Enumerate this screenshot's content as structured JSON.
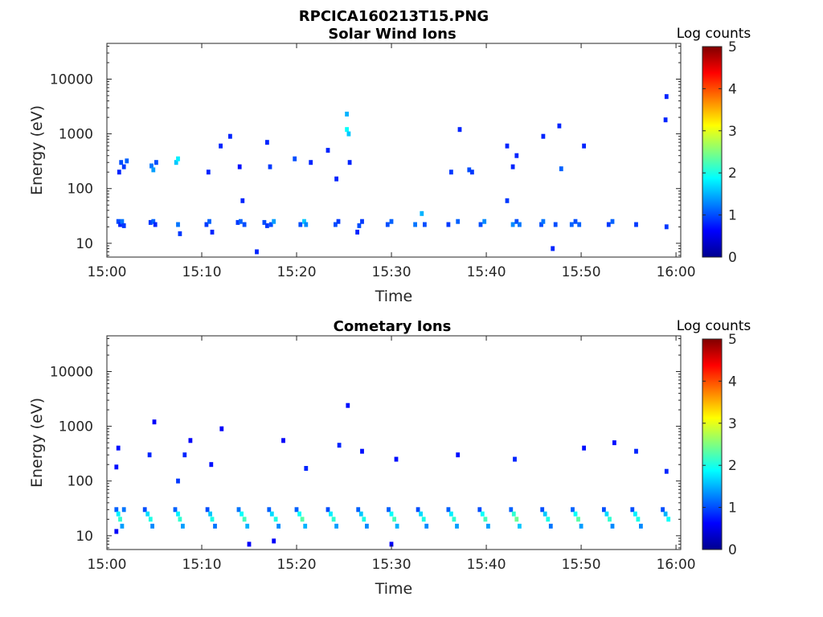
{
  "figure": {
    "title": "RPCICA160213T15.PNG"
  },
  "chart_data": [
    {
      "type": "heatmap",
      "title": "Solar Wind Ions",
      "xlabel": "Time",
      "ylabel": "Energy (eV)",
      "x_ticks": [
        "15:00",
        "15:10",
        "15:20",
        "15:30",
        "15:40",
        "15:50",
        "16:00"
      ],
      "x_tick_minutes": [
        0,
        10,
        20,
        30,
        40,
        50,
        60
      ],
      "xlim_minutes": [
        0,
        60.5
      ],
      "y_scale": "log",
      "y_ticks": [
        10,
        100,
        1000,
        10000
      ],
      "ylim": [
        5.6,
        45000
      ],
      "colorbar": {
        "label": "Log counts",
        "ticks": [
          0,
          1,
          2,
          3,
          4,
          5
        ],
        "range": [
          0,
          5
        ],
        "colormap": "jet"
      },
      "cells": [
        [
          1.2,
          25,
          1.0
        ],
        [
          1.4,
          22,
          0.8
        ],
        [
          1.6,
          25,
          1.2
        ],
        [
          1.8,
          21,
          0.9
        ],
        [
          1.5,
          300,
          1.0
        ],
        [
          1.8,
          250,
          0.9
        ],
        [
          2.1,
          320,
          1.1
        ],
        [
          1.3,
          200,
          0.8
        ],
        [
          4.6,
          24,
          0.9
        ],
        [
          4.9,
          25,
          1.1
        ],
        [
          5.1,
          22,
          0.8
        ],
        [
          4.7,
          260,
          1.2
        ],
        [
          4.9,
          220,
          1.4
        ],
        [
          5.2,
          300,
          1.0
        ],
        [
          7.5,
          22,
          1.2
        ],
        [
          7.7,
          15,
          0.9
        ],
        [
          7.3,
          300,
          1.6
        ],
        [
          7.5,
          350,
          1.8
        ],
        [
          10.5,
          22,
          0.9
        ],
        [
          10.8,
          25,
          1.1
        ],
        [
          11.1,
          16,
          0.8
        ],
        [
          10.7,
          200,
          0.8
        ],
        [
          12.0,
          600,
          0.8
        ],
        [
          13.0,
          900,
          0.8
        ],
        [
          13.8,
          24,
          0.9
        ],
        [
          14.1,
          25,
          1.1
        ],
        [
          14.5,
          22,
          1.0
        ],
        [
          14.3,
          60,
          0.8
        ],
        [
          14.0,
          250,
          0.7
        ],
        [
          15.8,
          7,
          0.8
        ],
        [
          16.6,
          24,
          1.0
        ],
        [
          16.9,
          21,
          0.9
        ],
        [
          17.3,
          22,
          1.0
        ],
        [
          17.6,
          25,
          1.4
        ],
        [
          16.9,
          700,
          0.8
        ],
        [
          17.2,
          250,
          0.9
        ],
        [
          19.8,
          350,
          1.0
        ],
        [
          20.4,
          22,
          1.0
        ],
        [
          20.8,
          25,
          1.6
        ],
        [
          21.0,
          22,
          1.3
        ],
        [
          21.5,
          300,
          0.8
        ],
        [
          23.3,
          500,
          0.8
        ],
        [
          24.1,
          22,
          1.0
        ],
        [
          24.4,
          25,
          0.9
        ],
        [
          24.2,
          150,
          0.8
        ],
        [
          25.3,
          2300,
          1.5
        ],
        [
          25.3,
          1200,
          1.9
        ],
        [
          25.5,
          1000,
          1.6
        ],
        [
          25.6,
          300,
          0.8
        ],
        [
          26.6,
          21,
          1.0
        ],
        [
          26.9,
          25,
          0.9
        ],
        [
          26.4,
          16,
          0.8
        ],
        [
          29.6,
          22,
          1.0
        ],
        [
          30.0,
          25,
          1.1
        ],
        [
          32.5,
          22,
          1.2
        ],
        [
          33.2,
          35,
          1.5
        ],
        [
          33.5,
          22,
          1.0
        ],
        [
          36.0,
          22,
          0.9
        ],
        [
          36.3,
          200,
          0.9
        ],
        [
          37.0,
          25,
          1.1
        ],
        [
          37.2,
          1200,
          0.8
        ],
        [
          38.2,
          220,
          1.0
        ],
        [
          38.5,
          200,
          0.9
        ],
        [
          39.4,
          22,
          1.0
        ],
        [
          39.8,
          25,
          1.3
        ],
        [
          42.2,
          600,
          0.8
        ],
        [
          42.2,
          60,
          0.9
        ],
        [
          42.8,
          250,
          0.8
        ],
        [
          43.2,
          400,
          0.8
        ],
        [
          42.8,
          22,
          1.3
        ],
        [
          43.2,
          25,
          1.0
        ],
        [
          43.5,
          22,
          1.2
        ],
        [
          45.8,
          22,
          1.0
        ],
        [
          46.0,
          25,
          1.2
        ],
        [
          47.0,
          8,
          0.8
        ],
        [
          47.3,
          22,
          1.0
        ],
        [
          46.0,
          900,
          0.8
        ],
        [
          47.7,
          1400,
          0.8
        ],
        [
          47.9,
          230,
          1.1
        ],
        [
          49.0,
          22,
          1.1
        ],
        [
          49.4,
          25,
          1.0
        ],
        [
          49.8,
          22,
          1.1
        ],
        [
          50.3,
          600,
          0.8
        ],
        [
          52.9,
          22,
          0.9
        ],
        [
          53.3,
          25,
          1.1
        ],
        [
          55.8,
          22,
          0.9
        ],
        [
          58.9,
          1800,
          0.8
        ],
        [
          59.0,
          4800,
          0.8
        ],
        [
          59.0,
          20,
          0.9
        ]
      ]
    },
    {
      "type": "heatmap",
      "title": "Cometary Ions",
      "xlabel": "Time",
      "ylabel": "Energy (eV)",
      "x_ticks": [
        "15:00",
        "15:10",
        "15:20",
        "15:30",
        "15:40",
        "15:50",
        "16:00"
      ],
      "x_tick_minutes": [
        0,
        10,
        20,
        30,
        40,
        50,
        60
      ],
      "xlim_minutes": [
        0,
        60.5
      ],
      "y_scale": "log",
      "y_ticks": [
        10,
        100,
        1000,
        10000
      ],
      "ylim": [
        5.6,
        45000
      ],
      "colorbar": {
        "label": "Log counts",
        "ticks": [
          0,
          1,
          2,
          3,
          4,
          5
        ],
        "range": [
          0,
          5
        ],
        "colormap": "jet"
      },
      "cells": [
        [
          1.0,
          30,
          1.1
        ],
        [
          1.2,
          25,
          1.8
        ],
        [
          1.4,
          20,
          2.1
        ],
        [
          1.6,
          15,
          1.4
        ],
        [
          1.8,
          30,
          1.2
        ],
        [
          1.0,
          12,
          0.6
        ],
        [
          1.2,
          400,
          0.7
        ],
        [
          1.0,
          180,
          0.7
        ],
        [
          4.0,
          30,
          1.0
        ],
        [
          4.3,
          25,
          1.7
        ],
        [
          4.6,
          20,
          2.0
        ],
        [
          4.8,
          15,
          1.3
        ],
        [
          4.5,
          300,
          0.8
        ],
        [
          5.0,
          1200,
          0.6
        ],
        [
          7.2,
          30,
          1.1
        ],
        [
          7.5,
          25,
          1.8
        ],
        [
          7.7,
          20,
          2.1
        ],
        [
          8.0,
          15,
          1.4
        ],
        [
          7.5,
          100,
          0.9
        ],
        [
          8.2,
          300,
          0.8
        ],
        [
          10.6,
          30,
          1.0
        ],
        [
          10.9,
          25,
          1.6
        ],
        [
          11.1,
          20,
          2.0
        ],
        [
          11.4,
          15,
          1.2
        ],
        [
          11.0,
          200,
          0.7
        ],
        [
          13.9,
          30,
          1.2
        ],
        [
          14.2,
          25,
          1.9
        ],
        [
          14.5,
          20,
          2.2
        ],
        [
          14.8,
          15,
          1.5
        ],
        [
          15.0,
          7,
          0.6
        ],
        [
          17.1,
          30,
          1.1
        ],
        [
          17.4,
          25,
          1.7
        ],
        [
          17.8,
          20,
          2.0
        ],
        [
          18.1,
          15,
          1.3
        ],
        [
          17.6,
          8,
          0.6
        ],
        [
          20.0,
          30,
          1.1
        ],
        [
          20.3,
          25,
          1.9
        ],
        [
          20.6,
          20,
          2.3
        ],
        [
          20.9,
          15,
          1.5
        ],
        [
          21.0,
          170,
          0.8
        ],
        [
          23.3,
          30,
          1.0
        ],
        [
          23.6,
          25,
          1.8
        ],
        [
          23.9,
          20,
          2.1
        ],
        [
          24.2,
          15,
          1.4
        ],
        [
          24.5,
          450,
          0.8
        ],
        [
          26.5,
          30,
          1.1
        ],
        [
          26.8,
          25,
          1.6
        ],
        [
          27.1,
          20,
          2.0
        ],
        [
          27.4,
          15,
          1.3
        ],
        [
          26.9,
          350,
          0.7
        ],
        [
          29.7,
          30,
          1.1
        ],
        [
          30.0,
          25,
          1.9
        ],
        [
          30.3,
          20,
          2.2
        ],
        [
          30.6,
          15,
          1.5
        ],
        [
          30.0,
          7,
          0.6
        ],
        [
          30.5,
          250,
          0.7
        ],
        [
          32.8,
          30,
          1.0
        ],
        [
          33.1,
          25,
          1.7
        ],
        [
          33.4,
          20,
          2.0
        ],
        [
          33.7,
          15,
          1.3
        ],
        [
          36.0,
          30,
          1.1
        ],
        [
          36.3,
          25,
          1.8
        ],
        [
          36.6,
          20,
          2.1
        ],
        [
          36.9,
          15,
          1.4
        ],
        [
          37.0,
          300,
          0.7
        ],
        [
          39.3,
          30,
          1.0
        ],
        [
          39.6,
          25,
          1.9
        ],
        [
          39.9,
          20,
          2.2
        ],
        [
          40.2,
          15,
          1.4
        ],
        [
          42.6,
          30,
          1.1
        ],
        [
          42.9,
          25,
          2.1
        ],
        [
          43.2,
          20,
          2.4
        ],
        [
          43.5,
          15,
          1.6
        ],
        [
          43.0,
          250,
          0.8
        ],
        [
          45.9,
          30,
          1.0
        ],
        [
          46.2,
          25,
          1.6
        ],
        [
          46.5,
          20,
          2.0
        ],
        [
          46.8,
          15,
          1.2
        ],
        [
          49.1,
          30,
          1.1
        ],
        [
          49.4,
          25,
          1.9
        ],
        [
          49.7,
          20,
          2.3
        ],
        [
          50.0,
          15,
          1.4
        ],
        [
          50.3,
          400,
          0.7
        ],
        [
          52.4,
          30,
          1.0
        ],
        [
          52.7,
          25,
          1.7
        ],
        [
          53.0,
          20,
          2.1
        ],
        [
          53.3,
          15,
          1.3
        ],
        [
          53.5,
          500,
          0.7
        ],
        [
          55.4,
          30,
          1.0
        ],
        [
          55.7,
          25,
          1.8
        ],
        [
          56.0,
          20,
          2.0
        ],
        [
          56.3,
          15,
          1.3
        ],
        [
          55.8,
          350,
          0.8
        ],
        [
          58.6,
          30,
          1.0
        ],
        [
          58.9,
          25,
          1.5
        ],
        [
          59.2,
          20,
          1.9
        ],
        [
          59.0,
          150,
          0.8
        ],
        [
          25.4,
          2400,
          0.7
        ],
        [
          12.1,
          900,
          0.6
        ],
        [
          18.6,
          550,
          0.6
        ],
        [
          8.8,
          550,
          0.6
        ]
      ]
    }
  ]
}
